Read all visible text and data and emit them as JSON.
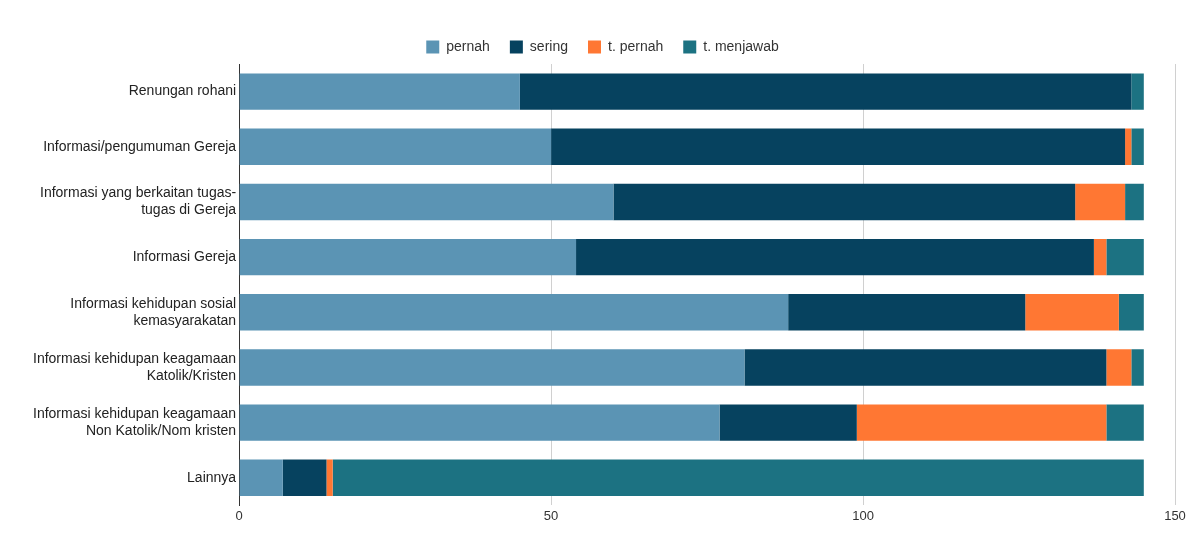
{
  "chart_data": {
    "type": "bar",
    "orientation": "horizontal",
    "stacked": true,
    "categories": [
      "Renungan rohani",
      "Informasi/pengumuman Gereja",
      "Informasi yang berkaitan tugas-tugas di Gereja",
      "Informasi Gereja",
      "Informasi kehidupan sosial kemasyarakatan",
      "Informasi kehidupan keagamaan Katolik/Kristen",
      "Informasi kehidupan keagamaan Non Katolik/Nom kristen",
      "Lainnya"
    ],
    "series": [
      {
        "name": "pernah",
        "color": "#5b94b4",
        "values": [
          45,
          50,
          60,
          54,
          88,
          81,
          77,
          7
        ]
      },
      {
        "name": "sering",
        "color": "#06425f",
        "values": [
          98,
          92,
          74,
          83,
          38,
          58,
          22,
          7
        ]
      },
      {
        "name": "t. pernah",
        "color": "#ff7733",
        "values": [
          0,
          1,
          8,
          2,
          15,
          4,
          40,
          1
        ]
      },
      {
        "name": "t. menjawab",
        "color": "#1c7282",
        "values": [
          2,
          2,
          3,
          6,
          4,
          2,
          6,
          130
        ]
      }
    ],
    "xlim": [
      0,
      150
    ],
    "xticks": [
      0,
      50,
      100,
      150
    ],
    "grid": "x",
    "legend": "top"
  }
}
